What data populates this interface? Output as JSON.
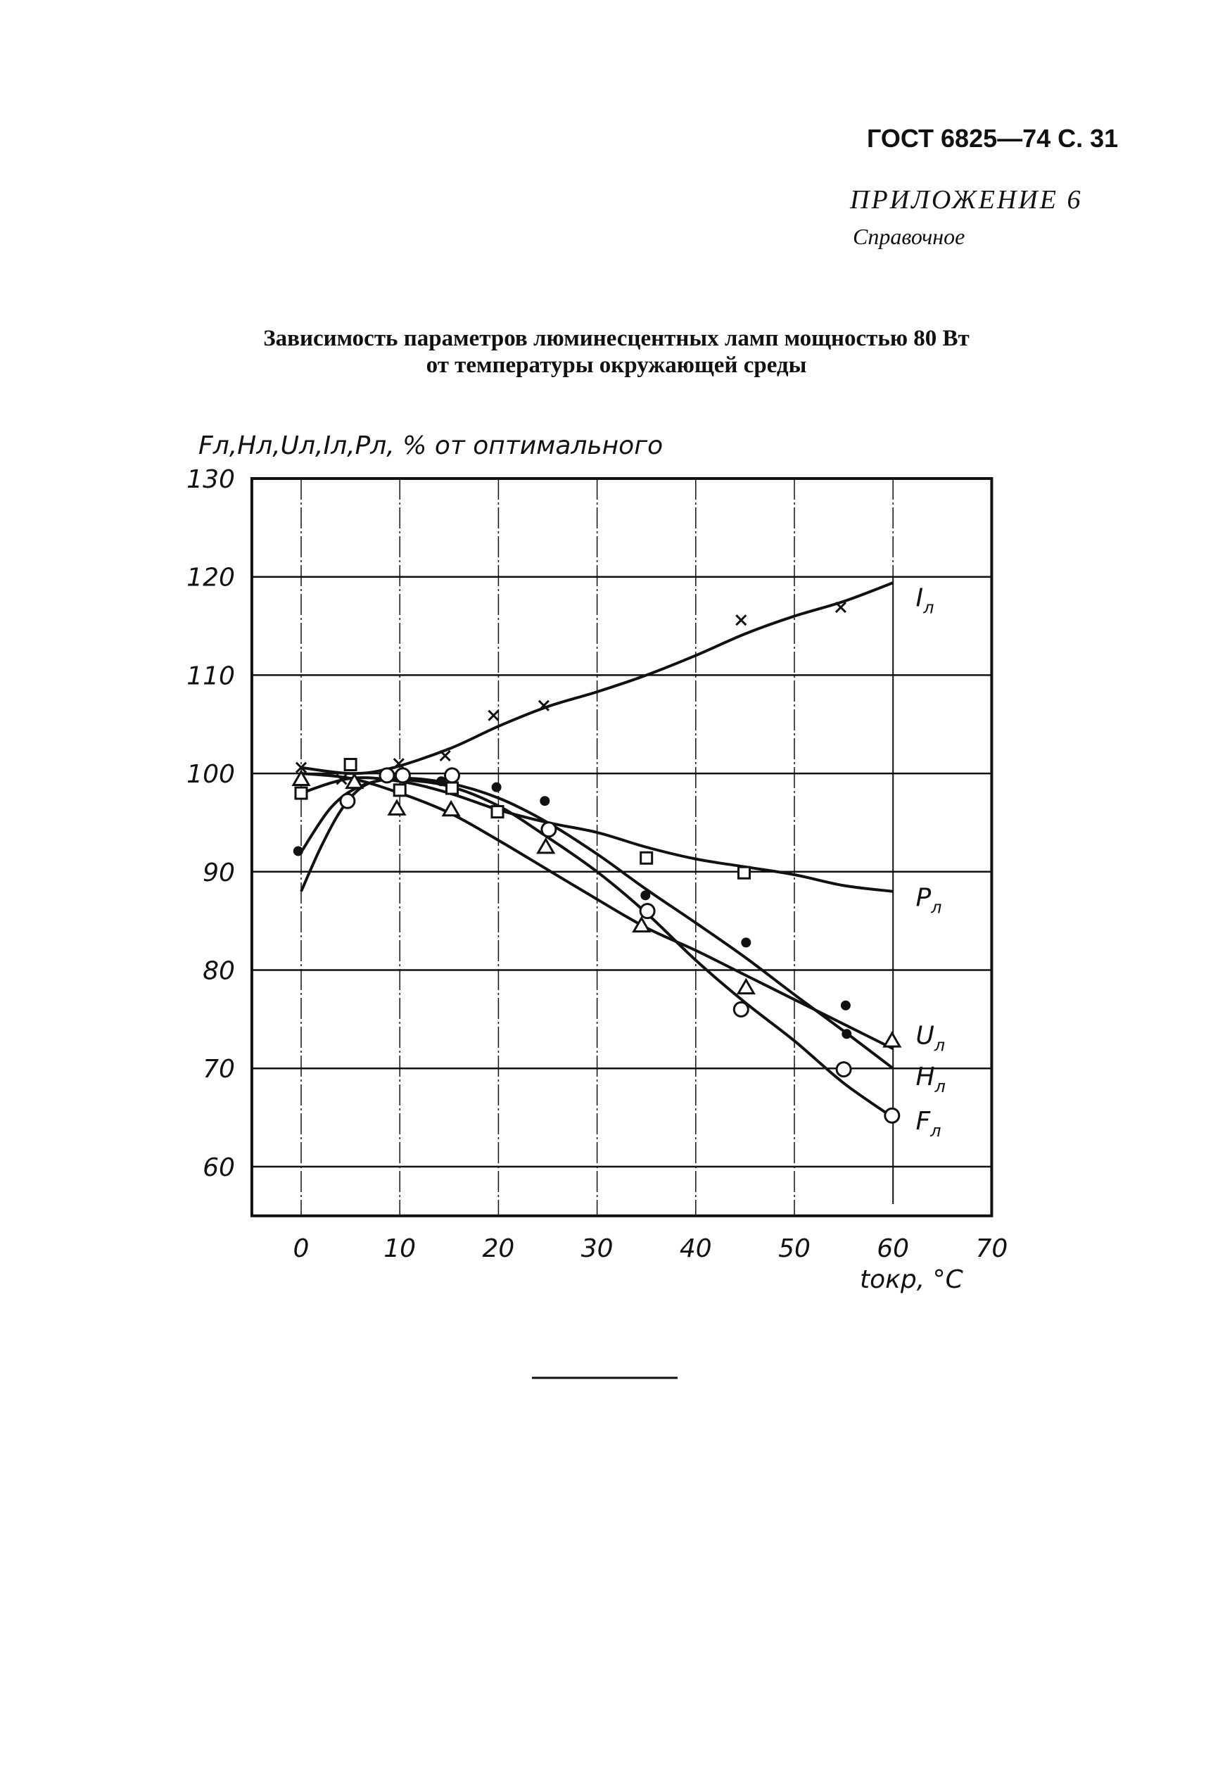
{
  "header": {
    "standard": "ГОСТ 6825—74 С. 31",
    "appendix": "ПРИЛОЖЕНИЕ 6",
    "appendix_note": "Справочное"
  },
  "chart_data": {
    "type": "line",
    "title": [
      "Зависимость параметров люминесцентных ламп мощностью 80 Вт",
      "от температуры окружающей среды"
    ],
    "ylabel": "Fл,Hл,Uл,Iл,Pл, % от оптимального",
    "xlabel": "tокр, °C",
    "xlim": [
      -5,
      70
    ],
    "ylim": [
      55,
      130
    ],
    "xticks": [
      0,
      10,
      20,
      30,
      40,
      50,
      60,
      70
    ],
    "yticks": [
      60,
      70,
      80,
      90,
      100,
      110,
      120,
      130
    ],
    "grid": true,
    "series": [
      {
        "name": "Iл",
        "marker": "cross",
        "points": [
          [
            0,
            100.6
          ],
          [
            4.1,
            99.4
          ],
          [
            9.9,
            101
          ],
          [
            14.6,
            101.8
          ],
          [
            19.5,
            105.9
          ],
          [
            24.6,
            106.9
          ],
          [
            44.6,
            115.6
          ],
          [
            54.7,
            116.9
          ]
        ],
        "curve": [
          [
            0,
            100.6
          ],
          [
            5,
            100
          ],
          [
            9,
            100.5
          ],
          [
            15,
            102.5
          ],
          [
            20,
            104.8
          ],
          [
            25,
            106.8
          ],
          [
            30,
            108.3
          ],
          [
            35,
            110
          ],
          [
            40,
            112
          ],
          [
            45,
            114.2
          ],
          [
            50,
            116
          ],
          [
            55,
            117.5
          ],
          [
            60,
            119.4
          ]
        ]
      },
      {
        "name": "Pл",
        "marker": "square",
        "points": [
          [
            0,
            98
          ],
          [
            5,
            100.9
          ],
          [
            10,
            98.3
          ],
          [
            15.3,
            98.5
          ],
          [
            19.9,
            96.1
          ],
          [
            35,
            91.4
          ],
          [
            44.9,
            89.9
          ]
        ],
        "curve": [
          [
            0,
            98
          ],
          [
            5,
            99.5
          ],
          [
            10,
            99.2
          ],
          [
            15,
            98
          ],
          [
            20,
            96.3
          ],
          [
            25,
            95
          ],
          [
            30,
            94
          ],
          [
            35,
            92.5
          ],
          [
            40,
            91.3
          ],
          [
            45,
            90.5
          ],
          [
            50,
            89.7
          ],
          [
            55,
            88.6
          ],
          [
            60,
            88
          ]
        ]
      },
      {
        "name": "Uл",
        "marker": "triangle",
        "points": [
          [
            0,
            99.4
          ],
          [
            5.4,
            99.1
          ],
          [
            9.7,
            96.4
          ],
          [
            15.2,
            96.3
          ],
          [
            24.8,
            92.5
          ],
          [
            34.5,
            84.5
          ],
          [
            45.1,
            78.2
          ],
          [
            59.9,
            72.8
          ]
        ],
        "curve": [
          [
            0,
            100
          ],
          [
            5,
            99.5
          ],
          [
            10,
            98
          ],
          [
            15,
            96
          ],
          [
            20,
            93.2
          ],
          [
            25,
            90.2
          ],
          [
            30,
            87.2
          ],
          [
            35,
            84.3
          ],
          [
            40,
            82
          ],
          [
            45,
            79.5
          ],
          [
            50,
            77
          ],
          [
            55,
            74.5
          ],
          [
            60,
            72
          ]
        ]
      },
      {
        "name": "Hл",
        "marker": "dot",
        "points": [
          [
            -0.3,
            92.1
          ],
          [
            14.2,
            99.2
          ],
          [
            19.8,
            98.6
          ],
          [
            24.7,
            97.2
          ],
          [
            34.9,
            87.6
          ],
          [
            45.1,
            82.8
          ],
          [
            55.2,
            76.4
          ],
          [
            55.3,
            73.5
          ]
        ],
        "curve": [
          [
            0,
            92
          ],
          [
            3,
            96.5
          ],
          [
            6,
            98.7
          ],
          [
            10,
            99.5
          ],
          [
            15,
            99
          ],
          [
            20,
            97.5
          ],
          [
            25,
            95
          ],
          [
            30,
            91.8
          ],
          [
            35,
            88.2
          ],
          [
            40,
            84.8
          ],
          [
            45,
            81.3
          ],
          [
            50,
            77.5
          ],
          [
            55,
            73.8
          ],
          [
            60,
            70
          ]
        ]
      },
      {
        "name": "Fл",
        "marker": "circle",
        "points": [
          [
            4.7,
            97.2
          ],
          [
            8.7,
            99.8
          ],
          [
            10.3,
            99.8
          ],
          [
            15.3,
            99.8
          ],
          [
            25.1,
            94.3
          ],
          [
            35.1,
            86
          ],
          [
            44.6,
            76
          ],
          [
            55,
            69.9
          ],
          [
            59.9,
            65.2
          ]
        ],
        "curve": [
          [
            0,
            88
          ],
          [
            2,
            92.5
          ],
          [
            4,
            96.2
          ],
          [
            6,
            98.5
          ],
          [
            8,
            99.3
          ],
          [
            10,
            99.4
          ],
          [
            15,
            98.7
          ],
          [
            20,
            96.7
          ],
          [
            25,
            93.5
          ],
          [
            30,
            90
          ],
          [
            35,
            85.8
          ],
          [
            40,
            81
          ],
          [
            45,
            76.7
          ],
          [
            50,
            72.8
          ],
          [
            55,
            68.5
          ],
          [
            60,
            65
          ]
        ]
      }
    ]
  }
}
